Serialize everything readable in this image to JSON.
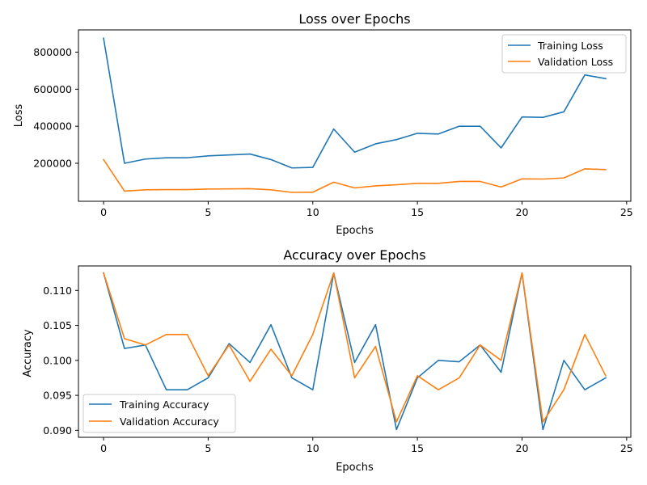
{
  "chart_data": [
    {
      "type": "line",
      "title": "Loss over Epochs",
      "xlabel": "Epochs",
      "ylabel": "Loss",
      "xlim": [
        -1.2,
        25.2
      ],
      "ylim": [
        -5000,
        920000
      ],
      "xticks": [
        0,
        5,
        10,
        15,
        20,
        25
      ],
      "xtick_labels": [
        "0",
        "5",
        "10",
        "15",
        "20",
        "25"
      ],
      "yticks": [
        200000,
        400000,
        600000,
        800000
      ],
      "ytick_labels": [
        "200000",
        "400000",
        "600000",
        "800000"
      ],
      "legend_position": "top-right",
      "grid": false,
      "x": [
        0,
        1,
        2,
        3,
        4,
        5,
        6,
        7,
        8,
        9,
        10,
        11,
        12,
        13,
        14,
        15,
        16,
        17,
        18,
        19,
        20,
        21,
        22,
        23,
        24
      ],
      "series": [
        {
          "name": "Training Loss",
          "color": "#1f77b4",
          "values": [
            875000,
            200000,
            223000,
            230000,
            230000,
            240000,
            245000,
            250000,
            220000,
            175000,
            178000,
            385000,
            260000,
            305000,
            328000,
            362000,
            358000,
            400000,
            400000,
            283000,
            450000,
            448000,
            478000,
            677000,
            657000
          ]
        },
        {
          "name": "Validation Loss",
          "color": "#ff7f0e",
          "values": [
            220000,
            50000,
            57000,
            58000,
            58000,
            61000,
            62000,
            63000,
            57000,
            43000,
            44000,
            98000,
            67000,
            78000,
            84000,
            92000,
            92000,
            102000,
            102000,
            72000,
            116000,
            115000,
            121000,
            170000,
            166000
          ]
        }
      ]
    },
    {
      "type": "line",
      "title": "Accuracy over Epochs",
      "xlabel": "Epochs",
      "ylabel": "Accuracy",
      "xlim": [
        -1.2,
        25.2
      ],
      "ylim": [
        0.089,
        0.1135
      ],
      "xticks": [
        0,
        5,
        10,
        15,
        20,
        25
      ],
      "xtick_labels": [
        "0",
        "5",
        "10",
        "15",
        "20",
        "25"
      ],
      "yticks": [
        0.09,
        0.095,
        0.1,
        0.105,
        0.11
      ],
      "ytick_labels": [
        "0.090",
        "0.095",
        "0.100",
        "0.105",
        "0.110"
      ],
      "legend_position": "bottom-left",
      "grid": false,
      "x": [
        0,
        1,
        2,
        3,
        4,
        5,
        6,
        7,
        8,
        9,
        10,
        11,
        12,
        13,
        14,
        15,
        16,
        17,
        18,
        19,
        20,
        21,
        22,
        23,
        24
      ],
      "series": [
        {
          "name": "Training Accuracy",
          "color": "#1f77b4",
          "values": [
            0.1125,
            0.1017,
            0.1022,
            0.0958,
            0.0958,
            0.0975,
            0.1024,
            0.0997,
            0.1051,
            0.0975,
            0.0958,
            0.1125,
            0.0997,
            0.1051,
            0.0901,
            0.0975,
            0.1,
            0.0998,
            0.1022,
            0.0983,
            0.1125,
            0.0901,
            0.1,
            0.0958,
            0.0975
          ]
        },
        {
          "name": "Validation Accuracy",
          "color": "#ff7f0e",
          "values": [
            0.1125,
            0.1031,
            0.1022,
            0.1037,
            0.1037,
            0.0978,
            0.1022,
            0.097,
            0.1016,
            0.0978,
            0.1037,
            0.1125,
            0.0975,
            0.102,
            0.0912,
            0.0978,
            0.0958,
            0.0975,
            0.1022,
            0.1,
            0.1125,
            0.0912,
            0.0958,
            0.1037,
            0.0978
          ]
        }
      ]
    }
  ]
}
